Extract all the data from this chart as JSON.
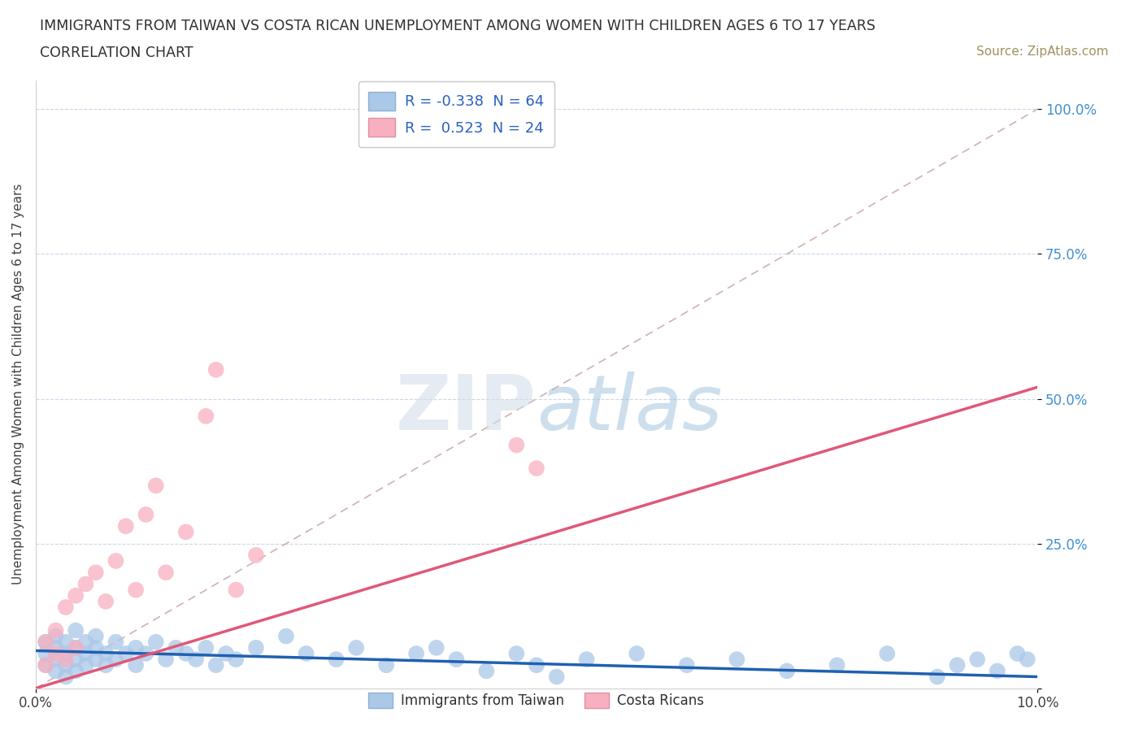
{
  "title_line1": "IMMIGRANTS FROM TAIWAN VS COSTA RICAN UNEMPLOYMENT AMONG WOMEN WITH CHILDREN AGES 6 TO 17 YEARS",
  "title_line2": "CORRELATION CHART",
  "source_text": "Source: ZipAtlas.com",
  "ylabel": "Unemployment Among Women with Children Ages 6 to 17 years",
  "xlim": [
    0.0,
    0.1
  ],
  "ylim": [
    0.0,
    1.05
  ],
  "ytick_positions": [
    0.0,
    0.25,
    0.5,
    0.75,
    1.0
  ],
  "ytick_labels": [
    "",
    "25.0%",
    "50.0%",
    "75.0%",
    "100.0%"
  ],
  "legend1_r": "-0.338",
  "legend1_n": "64",
  "legend2_r": "0.523",
  "legend2_n": "24",
  "legend1_label": "Immigrants from Taiwan",
  "legend2_label": "Costa Ricans",
  "blue_color": "#aac8e8",
  "pink_color": "#f8b0c0",
  "blue_line_color": "#2060b0",
  "pink_line_color": "#e05878",
  "watermark": "ZIPatlas",
  "blue_scatter_x": [
    0.001,
    0.001,
    0.001,
    0.002,
    0.002,
    0.002,
    0.002,
    0.003,
    0.003,
    0.003,
    0.003,
    0.004,
    0.004,
    0.004,
    0.004,
    0.005,
    0.005,
    0.005,
    0.006,
    0.006,
    0.006,
    0.007,
    0.007,
    0.008,
    0.008,
    0.009,
    0.01,
    0.01,
    0.011,
    0.012,
    0.013,
    0.014,
    0.015,
    0.016,
    0.017,
    0.018,
    0.019,
    0.02,
    0.022,
    0.025,
    0.027,
    0.03,
    0.032,
    0.035,
    0.038,
    0.04,
    0.042,
    0.045,
    0.048,
    0.05,
    0.052,
    0.055,
    0.06,
    0.065,
    0.07,
    0.075,
    0.08,
    0.085,
    0.09,
    0.092,
    0.094,
    0.096,
    0.098,
    0.099
  ],
  "blue_scatter_y": [
    0.04,
    0.06,
    0.08,
    0.03,
    0.05,
    0.07,
    0.09,
    0.04,
    0.06,
    0.02,
    0.08,
    0.05,
    0.07,
    0.03,
    0.1,
    0.04,
    0.06,
    0.08,
    0.05,
    0.07,
    0.09,
    0.04,
    0.06,
    0.05,
    0.08,
    0.06,
    0.07,
    0.04,
    0.06,
    0.08,
    0.05,
    0.07,
    0.06,
    0.05,
    0.07,
    0.04,
    0.06,
    0.05,
    0.07,
    0.09,
    0.06,
    0.05,
    0.07,
    0.04,
    0.06,
    0.07,
    0.05,
    0.03,
    0.06,
    0.04,
    0.02,
    0.05,
    0.06,
    0.04,
    0.05,
    0.03,
    0.04,
    0.06,
    0.02,
    0.04,
    0.05,
    0.03,
    0.06,
    0.05
  ],
  "pink_scatter_x": [
    0.001,
    0.001,
    0.002,
    0.002,
    0.003,
    0.003,
    0.004,
    0.004,
    0.005,
    0.006,
    0.007,
    0.008,
    0.009,
    0.01,
    0.011,
    0.012,
    0.013,
    0.015,
    0.017,
    0.018,
    0.02,
    0.022,
    0.048,
    0.05
  ],
  "pink_scatter_y": [
    0.04,
    0.08,
    0.06,
    0.1,
    0.05,
    0.14,
    0.07,
    0.16,
    0.18,
    0.2,
    0.15,
    0.22,
    0.28,
    0.17,
    0.3,
    0.35,
    0.2,
    0.27,
    0.47,
    0.55,
    0.17,
    0.23,
    0.42,
    0.38
  ],
  "pink_trendline_x": [
    0.0,
    0.1
  ],
  "pink_trendline_y": [
    0.0,
    0.52
  ],
  "blue_trendline_x": [
    0.0,
    0.1
  ],
  "blue_trendline_y": [
    0.065,
    0.02
  ]
}
